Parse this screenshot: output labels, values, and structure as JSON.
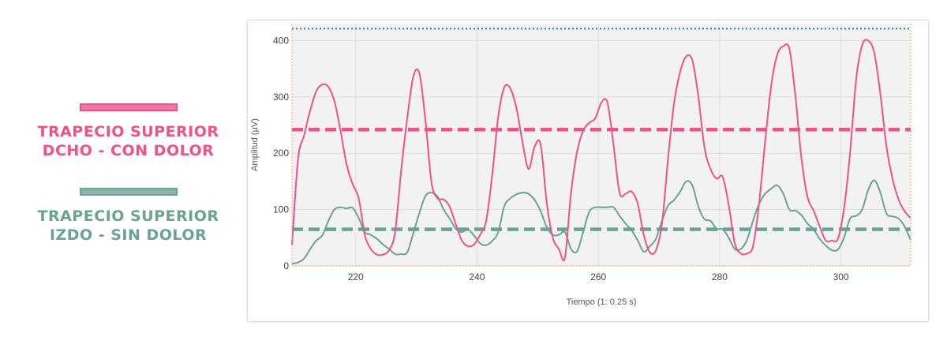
{
  "legend": [
    {
      "line1": "TRAPECIO SUPERIOR",
      "line2": "DCHO - CON DOLOR",
      "color": "#f0518a"
    },
    {
      "line1": "TRAPECIO SUPERIOR",
      "line2": "IZDO - SIN DOLOR",
      "color": "#6aa393"
    }
  ],
  "chart_data": {
    "type": "line",
    "xlabel": "Tiempo (1: 0.25 s)",
    "ylabel": "Amplitud (µV)",
    "xlim": [
      209.5,
      311.5
    ],
    "ylim": [
      0,
      430
    ],
    "xticks": [
      220,
      240,
      260,
      280,
      300
    ],
    "yticks": [
      0,
      100,
      200,
      300,
      400
    ],
    "grid": true,
    "series": [
      {
        "color": "#f0518a",
        "x": [
          209.5,
          210.5,
          211.5,
          212.5,
          213.5,
          214.5,
          215.5,
          216.5,
          217.5,
          218.5,
          219.5,
          220.5,
          221.5,
          222.5,
          223.5,
          224.5,
          225.5,
          226.5,
          227.5,
          228.5,
          229.5,
          230.5,
          231.5,
          232.5,
          233.5,
          234.5,
          235.5,
          236.5,
          237.5,
          238.5,
          239.5,
          240.5,
          241.5,
          242.5,
          243.5,
          244.5,
          245.5,
          246.5,
          247.5,
          248.5,
          249.5,
          250.5,
          251.5,
          252.5,
          253.5,
          254.5,
          255.5,
          256.5,
          257.5,
          258.5,
          259.5,
          260.5,
          261.5,
          262.5,
          263.5,
          264.5,
          265.5,
          266.5,
          267.5,
          268.5,
          269.5,
          270.5,
          271.5,
          272.5,
          273.5,
          274.5,
          275.5,
          276.5,
          277.5,
          278.5,
          279.5,
          280.5,
          281.5,
          282.5,
          283.5,
          284.5,
          285.5,
          286.5,
          287.5,
          288.5,
          289.5,
          290.5,
          291.5,
          292.5,
          293.5,
          294.5,
          295.5,
          296.5,
          297.5,
          298.5,
          299.5,
          300.5,
          301.5,
          302.5,
          303.5,
          304.5,
          305.5,
          306.5,
          307.5,
          308.5,
          309.5,
          310.5,
          311.5
        ],
        "y": [
          38,
          190,
          232,
          276,
          310,
          322,
          318,
          292,
          240,
          180,
          145,
          120,
          55,
          30,
          20,
          20,
          28,
          60,
          170,
          262,
          336,
          342,
          258,
          148,
          120,
          118,
          105,
          74,
          45,
          35,
          38,
          55,
          80,
          160,
          265,
          317,
          315,
          280,
          220,
          172,
          212,
          215,
          112,
          50,
          30,
          15,
          130,
          203,
          240,
          254,
          262,
          290,
          290,
          215,
          130,
          128,
          132,
          110,
          55,
          24,
          28,
          76,
          190,
          290,
          345,
          372,
          365,
          300,
          210,
          172,
          155,
          158,
          108,
          40,
          22,
          22,
          35,
          110,
          220,
          320,
          375,
          390,
          385,
          300,
          190,
          122,
          98,
          70,
          45,
          45,
          48,
          102,
          200,
          330,
          392,
          400,
          378,
          305,
          212,
          155,
          118,
          97,
          85
        ]
      },
      {
        "color": "#6aa393",
        "x": [
          209.5,
          210.5,
          211.5,
          212.5,
          213.5,
          214.5,
          215.5,
          216.5,
          217.5,
          218.5,
          219.5,
          220.5,
          221.5,
          222.5,
          223.5,
          224.5,
          225.5,
          226.5,
          227.5,
          228.5,
          229.5,
          230.5,
          231.5,
          232.5,
          233.5,
          234.5,
          235.5,
          236.5,
          237.5,
          238.5,
          239.5,
          240.5,
          241.5,
          242.5,
          243.5,
          244.5,
          245.5,
          246.5,
          247.5,
          248.5,
          249.5,
          250.5,
          251.5,
          252.5,
          253.5,
          254.5,
          255.5,
          256.5,
          257.5,
          258.5,
          259.5,
          260.5,
          261.5,
          262.5,
          263.5,
          264.5,
          265.5,
          266.5,
          267.5,
          268.5,
          269.5,
          270.5,
          271.5,
          272.5,
          273.5,
          274.5,
          275.5,
          276.5,
          277.5,
          278.5,
          279.5,
          280.5,
          281.5,
          282.5,
          283.5,
          284.5,
          285.5,
          286.5,
          287.5,
          288.5,
          289.5,
          290.5,
          291.5,
          292.5,
          293.5,
          294.5,
          295.5,
          296.5,
          297.5,
          298.5,
          299.5,
          300.5,
          301.5,
          302.5,
          303.5,
          304.5,
          305.5,
          306.5,
          307.5,
          308.5,
          309.5,
          310.5,
          311.5
        ],
        "y": [
          4,
          6,
          13,
          30,
          45,
          54,
          80,
          100,
          104,
          102,
          103,
          85,
          60,
          55,
          48,
          38,
          30,
          21,
          21,
          24,
          58,
          94,
          124,
          130,
          123,
          100,
          84,
          66,
          60,
          65,
          54,
          40,
          37,
          44,
          60,
          106,
          120,
          127,
          130,
          128,
          117,
          97,
          69,
          55,
          55,
          60,
          30,
          26,
          60,
          96,
          104,
          104,
          104,
          104,
          89,
          75,
          63,
          45,
          25,
          35,
          48,
          80,
          107,
          117,
          132,
          150,
          143,
          105,
          83,
          80,
          66,
          65,
          50,
          30,
          30,
          46,
          80,
          110,
          128,
          137,
          143,
          128,
          100,
          98,
          90,
          75,
          65,
          48,
          36,
          28,
          29,
          50,
          84,
          89,
          100,
          135,
          152,
          130,
          93,
          88,
          84,
          70,
          46
        ]
      }
    ],
    "reference_lines": [
      {
        "y": 242,
        "color": "#f0518a",
        "style": "dashed"
      },
      {
        "y": 65,
        "color": "#6aa393",
        "style": "dashed"
      },
      {
        "y": 421,
        "color": "#2a6fbd",
        "style": "dotted"
      }
    ]
  }
}
